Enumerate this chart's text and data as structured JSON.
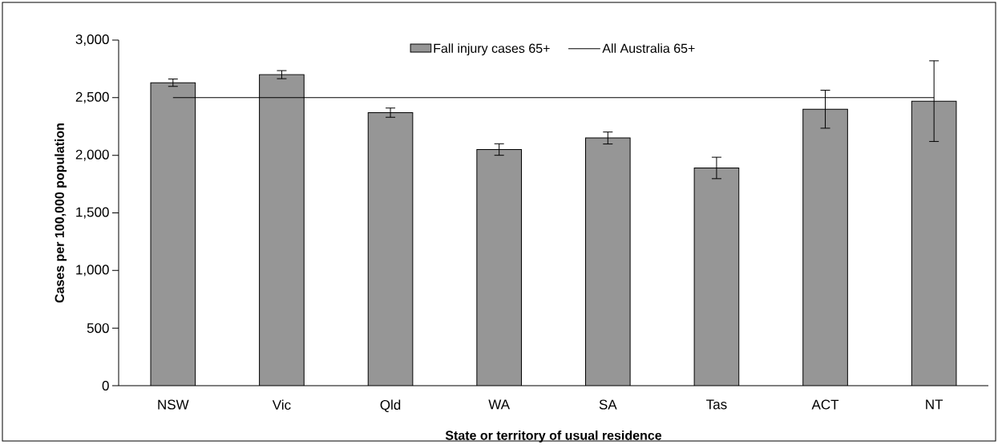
{
  "chart_data": {
    "type": "bar",
    "xlabel": "State or territory of usual residence",
    "ylabel": "Cases per 100,000 population",
    "categories": [
      "NSW",
      "Vic",
      "Qld",
      "WA",
      "SA",
      "Tas",
      "ACT",
      "NT"
    ],
    "series": [
      {
        "name": "Fall injury cases 65+",
        "color": "#969696",
        "values": [
          2630,
          2700,
          2370,
          2050,
          2150,
          1890,
          2400,
          2470
        ],
        "errors": [
          32,
          35,
          40,
          50,
          52,
          93,
          165,
          350
        ]
      },
      {
        "name": "All Australia 65+",
        "type": "line",
        "color": "#000000",
        "values": [
          2500,
          2500,
          2500,
          2500,
          2500,
          2500,
          2500,
          2500
        ]
      }
    ],
    "ylim": [
      0,
      3000
    ],
    "yticks": [
      {
        "value": 0,
        "label": "0"
      },
      {
        "value": 500,
        "label": "500"
      },
      {
        "value": 1000,
        "label": "1,000"
      },
      {
        "value": 1500,
        "label": "1,500"
      },
      {
        "value": 2000,
        "label": "2,000"
      },
      {
        "value": 2500,
        "label": "2,500"
      },
      {
        "value": 3000,
        "label": "3,000"
      }
    ],
    "grid": false,
    "legend": "top"
  }
}
